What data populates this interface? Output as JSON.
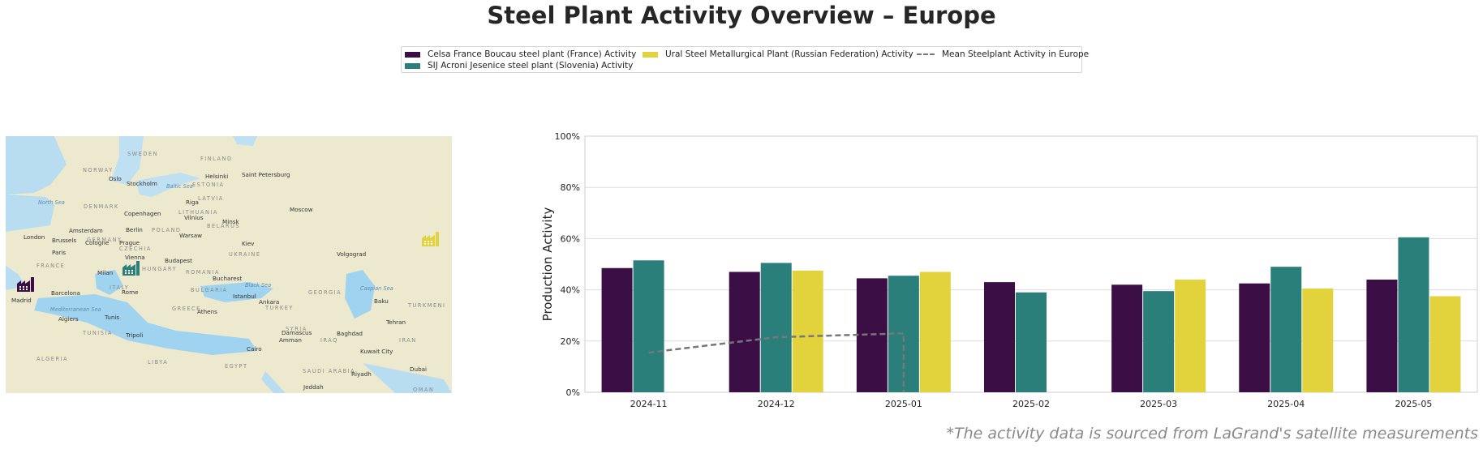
{
  "title": "Steel Plant Activity Overview – Europe",
  "source_note": "*The activity data is sourced from LaGrand's satellite measurements",
  "legend": {
    "items": [
      {
        "label": "Celsa France Boucau steel plant (France) Activity",
        "color": "#3b0f46",
        "type": "bar"
      },
      {
        "label": "SIJ Acroni Jesenice steel plant (Slovenia) Activity",
        "color": "#2a7f7b",
        "type": "bar"
      },
      {
        "label": "Ural Steel Metallurgical Plant (Russian Federation) Activity",
        "color": "#e2d33c",
        "type": "bar"
      },
      {
        "label": "Mean Steelplant Activity in Europe",
        "color": "#777777",
        "type": "dashed-line"
      }
    ]
  },
  "map": {
    "countries": [
      "SWEDEN",
      "FINLAND",
      "NORWAY",
      "ESTONIA",
      "LATVIA",
      "DENMARK",
      "LITHUANIA",
      "BELARUS",
      "POLAND",
      "GERMANY",
      "CZECHIA",
      "UKRAINE",
      "FRANCE",
      "HUNGARY",
      "ROMANIA",
      "ITALY",
      "BULGARIA",
      "GREECE",
      "TURKEY",
      "TUNISIA",
      "ALGERIA",
      "LIBYA",
      "EGYPT",
      "SYRIA",
      "IRAQ",
      "IRAN",
      "SAUDI ARABIA",
      "GEORGIA",
      "TURKMENI",
      "OMAN"
    ],
    "cities": [
      "Oslo",
      "Stockholm",
      "Helsinki",
      "Saint Petersburg",
      "Copenhagen",
      "Riga",
      "Vilnius",
      "Minsk",
      "Moscow",
      "London",
      "Amsterdam",
      "Berlin",
      "Warsaw",
      "Brussels",
      "Cologne",
      "Paris",
      "Prague",
      "Kiev",
      "Vienna",
      "Budapest",
      "Volgograd",
      "Milan",
      "Bucharest",
      "Barcelona",
      "Rome",
      "Istanbul",
      "Ankara",
      "Baku",
      "Madrid",
      "Algiers",
      "Tunis",
      "Athens",
      "Tehran",
      "Tripoli",
      "Damascus",
      "Amman",
      "Baghdad",
      "Cairo",
      "Kuwait City",
      "Riyadh",
      "Dubai",
      "Jeddah"
    ],
    "seas": [
      "North Sea",
      "Baltic Sea",
      "Black Sea",
      "Caspian Sea",
      "Mediterranean Sea"
    ],
    "plant_markers": [
      {
        "name": "Celsa France Boucau steel plant (France)",
        "color": "#3b0f46",
        "icon": "factory-icon"
      },
      {
        "name": "SIJ Acroni Jesenice steel plant (Slovenia)",
        "color": "#2a7f7b",
        "icon": "factory-icon"
      },
      {
        "name": "Ural Steel Metallurgical Plant (Russian Federation)",
        "color": "#e2d33c",
        "icon": "factory-icon"
      }
    ]
  },
  "chart_data": {
    "type": "bar",
    "title": "",
    "xlabel": "",
    "ylabel": "Production Activity",
    "ylim": [
      0,
      100
    ],
    "y_ticks": [
      "0%",
      "20%",
      "40%",
      "60%",
      "80%",
      "100%"
    ],
    "y_tick_values": [
      0,
      20,
      40,
      60,
      80,
      100
    ],
    "grid": true,
    "categories": [
      "2024-11",
      "2024-12",
      "2025-01",
      "2025-02",
      "2025-03",
      "2025-04",
      "2025-05"
    ],
    "series": [
      {
        "name": "Celsa France Boucau steel plant (France) Activity",
        "color": "#3b0f46",
        "values": [
          48.5,
          47,
          44.5,
          43,
          42,
          42.5,
          44
        ]
      },
      {
        "name": "SIJ Acroni Jesenice steel plant (Slovenia) Activity",
        "color": "#2a7f7b",
        "values": [
          51.5,
          50.5,
          45.5,
          39,
          39.5,
          49,
          60.5
        ]
      },
      {
        "name": "Ural Steel Metallurgical Plant (Russian Federation) Activity",
        "color": "#e2d33c",
        "values": [
          null,
          47.5,
          47,
          null,
          44,
          40.5,
          37.5
        ]
      }
    ],
    "mean_line": {
      "name": "Mean Steelplant Activity in Europe",
      "color": "#777777",
      "points": [
        {
          "x": "2024-11",
          "y": 15.5
        },
        {
          "x": "2024-12",
          "y": 21.5
        },
        {
          "x": "2025-01",
          "y": 23
        },
        {
          "x": "2025-01",
          "y": 0
        }
      ]
    }
  }
}
